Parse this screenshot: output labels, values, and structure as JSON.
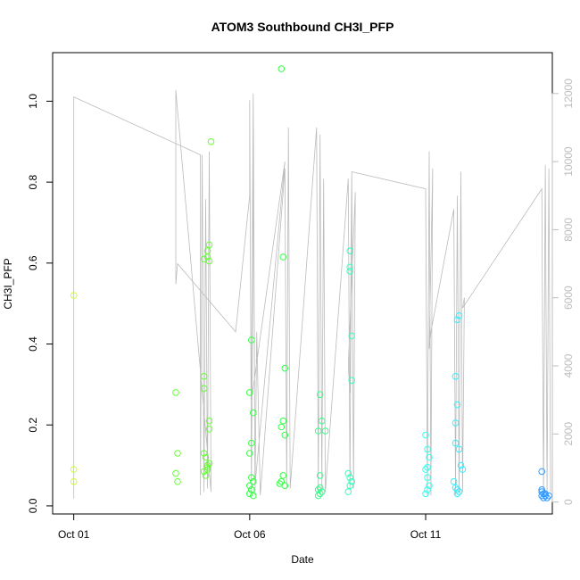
{
  "chart_data": {
    "type": "scatter",
    "title": "ATOM3 Southbound CH3I_PFP",
    "xlabel": "Date",
    "ylabel": "CH3I_PFP",
    "x_ticks": [
      {
        "label": "Oct 01",
        "value": 0
      },
      {
        "label": "Oct 06",
        "value": 5
      },
      {
        "label": "Oct 11",
        "value": 10
      }
    ],
    "xlim": [
      -0.6,
      13.6
    ],
    "ylim": [
      -0.02,
      1.12
    ],
    "y_ticks": [
      0.0,
      0.2,
      0.4,
      0.6,
      0.8,
      1.0
    ],
    "y2_ticks": [
      0,
      2000,
      4000,
      6000,
      8000,
      10000,
      12000
    ],
    "y2lim": [
      -350,
      13200
    ],
    "series": [
      {
        "color": "#ccff33",
        "points": [
          [
            0.0,
            0.52
          ],
          [
            0.0,
            0.09
          ],
          [
            0.0,
            0.06
          ]
        ]
      },
      {
        "color": "#66ff33",
        "points": [
          [
            2.9,
            0.28
          ],
          [
            2.95,
            0.13
          ],
          [
            2.9,
            0.08
          ],
          [
            2.95,
            0.06
          ],
          [
            3.7,
            0.61
          ],
          [
            3.8,
            0.63
          ],
          [
            3.85,
            0.645
          ],
          [
            3.8,
            0.615
          ],
          [
            3.85,
            0.605
          ],
          [
            3.9,
            0.9
          ],
          [
            3.7,
            0.32
          ],
          [
            3.7,
            0.29
          ],
          [
            3.85,
            0.21
          ],
          [
            3.85,
            0.19
          ],
          [
            3.7,
            0.13
          ],
          [
            3.75,
            0.12
          ],
          [
            3.8,
            0.1
          ],
          [
            3.85,
            0.105
          ],
          [
            3.8,
            0.09
          ],
          [
            3.7,
            0.085
          ],
          [
            3.75,
            0.075
          ],
          [
            3.8,
            0.095
          ]
        ]
      },
      {
        "color": "#33ff44",
        "points": [
          [
            5.05,
            0.41
          ],
          [
            5.0,
            0.28
          ],
          [
            5.1,
            0.23
          ],
          [
            5.05,
            0.155
          ],
          [
            5.0,
            0.13
          ],
          [
            5.05,
            0.07
          ],
          [
            5.1,
            0.06
          ],
          [
            5.0,
            0.05
          ],
          [
            5.05,
            0.04
          ],
          [
            5.0,
            0.03
          ],
          [
            5.1,
            0.025
          ],
          [
            5.9,
            1.08
          ],
          [
            5.95,
            0.615
          ],
          [
            6.0,
            0.34
          ],
          [
            5.95,
            0.21
          ],
          [
            5.9,
            0.195
          ],
          [
            6.0,
            0.175
          ],
          [
            5.95,
            0.075
          ],
          [
            5.9,
            0.06
          ],
          [
            5.85,
            0.055
          ],
          [
            6.0,
            0.05
          ]
        ]
      },
      {
        "color": "#33ff88",
        "points": [
          [
            7.0,
            0.275
          ],
          [
            7.05,
            0.21
          ],
          [
            6.95,
            0.185
          ],
          [
            7.15,
            0.185
          ],
          [
            7.0,
            0.075
          ],
          [
            7.0,
            0.045
          ],
          [
            6.95,
            0.04
          ],
          [
            7.05,
            0.035
          ],
          [
            7.0,
            0.03
          ],
          [
            6.95,
            0.025
          ]
        ]
      },
      {
        "color": "#33ffbb",
        "points": [
          [
            7.85,
            0.63
          ],
          [
            7.85,
            0.59
          ],
          [
            7.85,
            0.58
          ],
          [
            7.9,
            0.42
          ],
          [
            7.9,
            0.31
          ],
          [
            7.8,
            0.08
          ],
          [
            7.85,
            0.07
          ],
          [
            7.9,
            0.06
          ],
          [
            7.85,
            0.05
          ],
          [
            7.8,
            0.035
          ]
        ]
      },
      {
        "color": "#33ffee",
        "points": [
          [
            10.0,
            0.175
          ],
          [
            10.05,
            0.14
          ],
          [
            10.1,
            0.12
          ],
          [
            10.05,
            0.095
          ],
          [
            10.0,
            0.09
          ],
          [
            10.05,
            0.07
          ],
          [
            10.1,
            0.05
          ],
          [
            10.05,
            0.04
          ],
          [
            10.0,
            0.03
          ]
        ]
      },
      {
        "color": "#33eeff",
        "points": [
          [
            10.85,
            0.32
          ],
          [
            10.9,
            0.25
          ],
          [
            10.85,
            0.205
          ],
          [
            10.85,
            0.155
          ],
          [
            10.95,
            0.14
          ],
          [
            10.95,
            0.47
          ],
          [
            10.9,
            0.46
          ],
          [
            11.0,
            0.1
          ],
          [
            11.05,
            0.09
          ],
          [
            10.8,
            0.06
          ],
          [
            10.85,
            0.045
          ],
          [
            10.9,
            0.04
          ],
          [
            10.95,
            0.035
          ],
          [
            10.9,
            0.03
          ]
        ]
      },
      {
        "color": "#3399ff",
        "points": [
          [
            13.3,
            0.085
          ],
          [
            13.3,
            0.04
          ],
          [
            13.3,
            0.035
          ],
          [
            13.35,
            0.03
          ],
          [
            13.4,
            0.03
          ],
          [
            13.3,
            0.025
          ],
          [
            13.4,
            0.025
          ],
          [
            13.5,
            0.025
          ],
          [
            13.35,
            0.02
          ],
          [
            13.45,
            0.02
          ]
        ]
      }
    ],
    "altitude_path": {
      "color": "#bbbbbb",
      "points": [
        [
          0.0,
          100
        ],
        [
          0.0,
          11900
        ],
        [
          3.6,
          10200
        ],
        [
          3.6,
          200
        ],
        [
          3.65,
          10200
        ],
        [
          3.7,
          300
        ],
        [
          3.75,
          8900
        ],
        [
          3.8,
          400
        ],
        [
          3.85,
          10300
        ],
        [
          3.9,
          300
        ],
        [
          2.9,
          12100
        ],
        [
          2.9,
          6400
        ],
        [
          2.95,
          7000
        ],
        [
          4.6,
          5000
        ],
        [
          5.0,
          9000
        ],
        [
          5.0,
          11800
        ],
        [
          5.05,
          300
        ],
        [
          5.1,
          10000
        ],
        [
          5.15,
          500
        ],
        [
          6.0,
          10000
        ],
        [
          5.05,
          3000
        ],
        [
          5.1,
          12000
        ],
        [
          5.15,
          200
        ],
        [
          5.2,
          5000
        ],
        [
          5.3,
          200
        ],
        [
          6.0,
          9800
        ],
        [
          6.05,
          400
        ],
        [
          6.1,
          11000
        ],
        [
          6.15,
          400
        ],
        [
          6.9,
          11000
        ],
        [
          6.95,
          300
        ],
        [
          7.0,
          10800
        ],
        [
          7.05,
          400
        ],
        [
          7.1,
          9500
        ],
        [
          7.15,
          300
        ],
        [
          7.8,
          9500
        ],
        [
          7.85,
          400
        ],
        [
          7.9,
          9700
        ],
        [
          7.95,
          400
        ],
        [
          8.0,
          9100
        ],
        [
          7.8,
          4000
        ],
        [
          7.85,
          3200
        ],
        [
          7.9,
          9700
        ],
        [
          10.0,
          9200
        ],
        [
          10.05,
          200
        ],
        [
          10.1,
          10300
        ],
        [
          10.15,
          200
        ],
        [
          10.2,
          9800
        ],
        [
          10.1,
          4500
        ],
        [
          10.15,
          5000
        ],
        [
          10.8,
          8600
        ],
        [
          10.85,
          200
        ],
        [
          10.9,
          9000
        ],
        [
          10.95,
          300
        ],
        [
          11.0,
          9700
        ],
        [
          11.05,
          300
        ],
        [
          11.1,
          6000
        ],
        [
          11.05,
          5700
        ],
        [
          13.3,
          9200
        ],
        [
          13.35,
          200
        ],
        [
          13.4,
          9900
        ],
        [
          13.45,
          200
        ],
        [
          13.5,
          9800
        ],
        [
          13.55,
          300
        ]
      ]
    }
  }
}
